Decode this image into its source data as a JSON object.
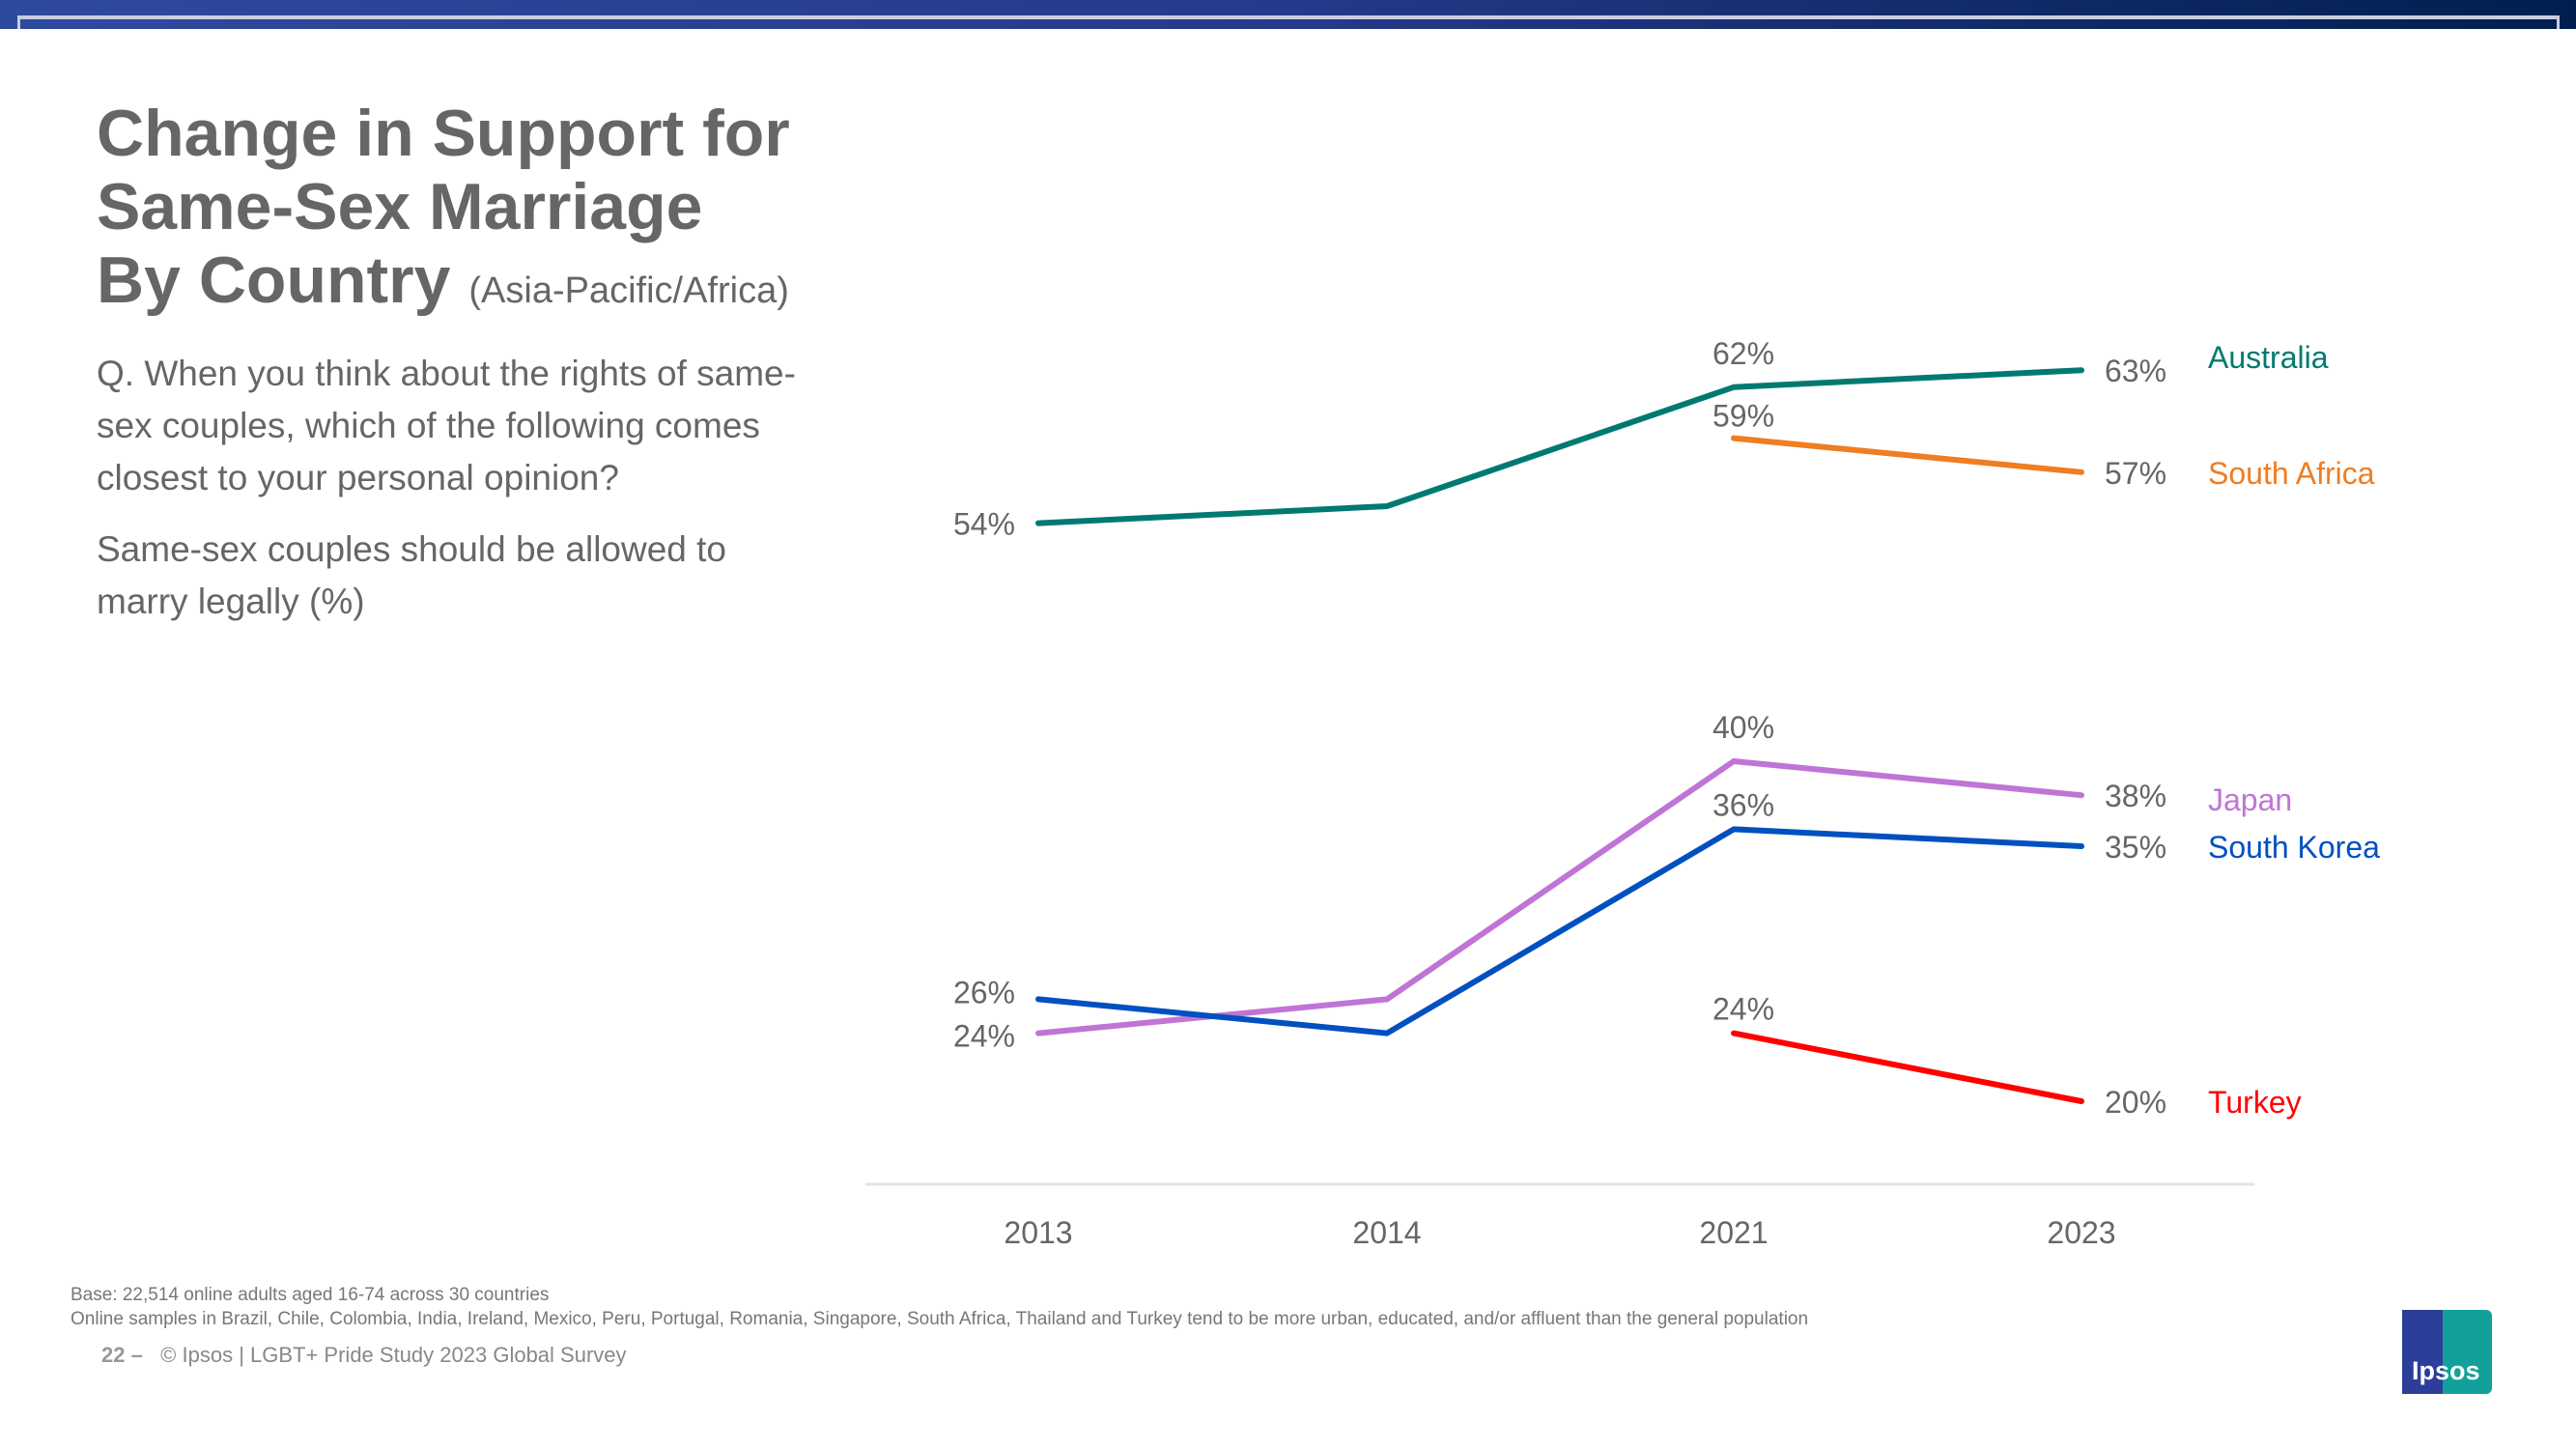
{
  "title": {
    "line1": "Change in Support for",
    "line2": "Same-Sex Marriage",
    "line3": "By Country",
    "subtitle": "(Asia-Pacific/Africa)"
  },
  "question": {
    "text": "Q. When you think about the rights of same-sex couples, which of the following comes closest to your personal opinion?",
    "statement": "Same-sex couples should be allowed to marry legally (%)"
  },
  "footer": {
    "base": "Base: 22,514 online adults aged 16-74 across 30 countries",
    "note": "Online samples in Brazil, Chile, Colombia, India, Ireland, Mexico, Peru, Portugal, Romania, Singapore, South Africa, Thailand and Turkey tend to be more urban, educated, and/or affluent than the general population",
    "page": "22 –",
    "source": "© Ipsos | LGBT+ Pride Study 2023 Global Survey",
    "logo": "Ipsos"
  },
  "chart_data": {
    "type": "line",
    "categories": [
      "2013",
      "2014",
      "2021",
      "2023"
    ],
    "ylim": [
      20,
      63
    ],
    "grid": false,
    "legend": "right, inline labels",
    "series": [
      {
        "name": "Australia",
        "color": "#007a70",
        "values": [
          54,
          55,
          62,
          63
        ],
        "labels": [
          "54%",
          null,
          "62%",
          "63%"
        ]
      },
      {
        "name": "South Africa",
        "color": "#ef7d22",
        "values": [
          null,
          null,
          59,
          57
        ],
        "labels": [
          null,
          null,
          "59%",
          "57%"
        ]
      },
      {
        "name": "Japan",
        "color": "#c074d6",
        "values": [
          24,
          26,
          40,
          38
        ],
        "labels": [
          "24%",
          null,
          "40%",
          "38%"
        ]
      },
      {
        "name": "South Korea",
        "color": "#0050c0",
        "values": [
          26,
          24,
          36,
          35
        ],
        "labels": [
          "26%",
          null,
          "36%",
          "35%"
        ]
      },
      {
        "name": "Turkey",
        "color": "#ff0000",
        "values": [
          null,
          null,
          24,
          20
        ],
        "labels": [
          null,
          null,
          "24%",
          "20%"
        ]
      }
    ]
  }
}
